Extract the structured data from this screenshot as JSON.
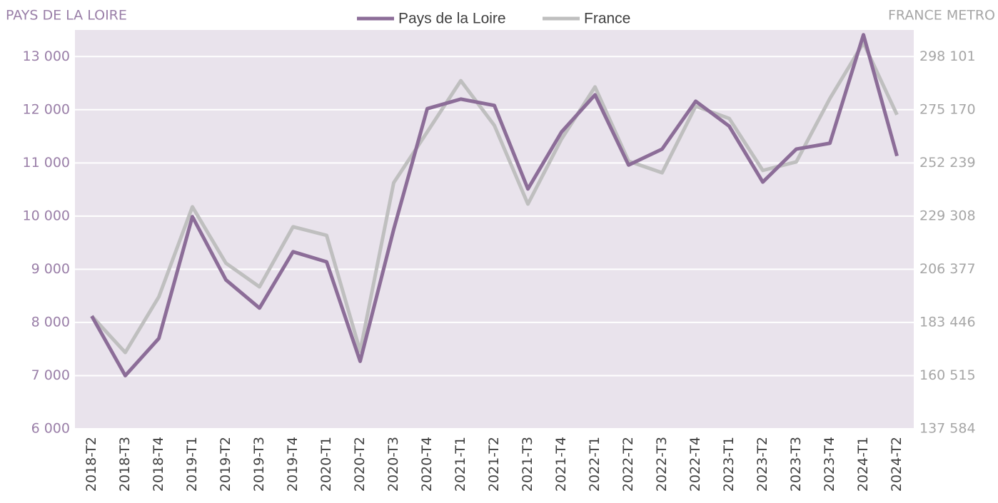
{
  "chart_data": {
    "type": "line",
    "y_axis_title": "PAYS DE LA LOIRE",
    "y2_axis_title": "FRANCE METRO",
    "categories": [
      "2018-T2",
      "2018-T3",
      "2018-T4",
      "2019-T1",
      "2019-T2",
      "2019-T3",
      "2019-T4",
      "2020-T1",
      "2020-T2",
      "2020-T3",
      "2020-T4",
      "2021-T1",
      "2021-T2",
      "2021-T3",
      "2021-T4",
      "2022-T1",
      "2022-T2",
      "2022-T3",
      "2022-T4",
      "2023-T1",
      "2023-T2",
      "2023-T3",
      "2023-T4",
      "2024-T1",
      "2024-T2"
    ],
    "series": [
      {
        "name": "Pays de la Loire",
        "color": "#8c6d98",
        "values": [
          8120,
          7000,
          7700,
          9990,
          8800,
          8270,
          9330,
          9140,
          7270,
          9750,
          12020,
          12200,
          12080,
          10510,
          11580,
          12280,
          10960,
          11260,
          12160,
          11690,
          10640,
          11260,
          11370,
          13410,
          11130
        ]
      },
      {
        "name": "France",
        "color": "#bfbfbf",
        "axis": "y2",
        "values": [
          186200,
          170500,
          194500,
          233300,
          209000,
          198800,
          224700,
          221000,
          171100,
          243700,
          265600,
          287700,
          268400,
          234500,
          262500,
          285000,
          253000,
          248000,
          276700,
          271400,
          249000,
          252700,
          280000,
          304000,
          273000
        ]
      }
    ],
    "ylim": [
      6000,
      13500
    ],
    "yticks": [
      {
        "value": 6000,
        "label": "6 000"
      },
      {
        "value": 7000,
        "label": "7 000"
      },
      {
        "value": 8000,
        "label": "8 000"
      },
      {
        "value": 9000,
        "label": "9 000"
      },
      {
        "value": 10000,
        "label": "10 000"
      },
      {
        "value": 11000,
        "label": "11 000"
      },
      {
        "value": 12000,
        "label": "12 000"
      },
      {
        "value": 13000,
        "label": "13 000"
      }
    ],
    "y2lim": [
      137584,
      309566.5
    ],
    "y2ticks": [
      {
        "value": 137584,
        "label": "137 584"
      },
      {
        "value": 160515,
        "label": "160 515"
      },
      {
        "value": 183446,
        "label": "183 446"
      },
      {
        "value": 206377,
        "label": "206 377"
      },
      {
        "value": 229308,
        "label": "229 308"
      },
      {
        "value": 252239,
        "label": "252 239"
      },
      {
        "value": 275170,
        "label": "275 170"
      },
      {
        "value": 298101,
        "label": "298 101"
      }
    ],
    "grid": true,
    "legend": "top"
  }
}
